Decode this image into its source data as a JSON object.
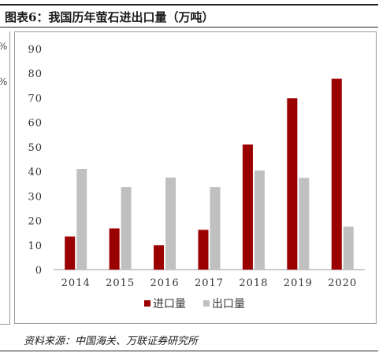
{
  "title": "图表6：我国历年萤石进出口量（万吨）",
  "source": "资料来源：中国海关、万联证券研究所",
  "left_fragment_marks": [
    "%",
    "%"
  ],
  "chart_data": {
    "type": "bar",
    "title": "",
    "xlabel": "",
    "ylabel": "",
    "categories": [
      "2014",
      "2015",
      "2016",
      "2017",
      "2018",
      "2019",
      "2020"
    ],
    "ylim": [
      0,
      90
    ],
    "yticks": [
      0,
      10,
      20,
      30,
      40,
      50,
      60,
      70,
      80,
      90
    ],
    "grid": false,
    "legend_position": "bottom-center",
    "series": [
      {
        "name": "进口量",
        "color": "#9b0000",
        "values": [
          13.5,
          16.8,
          9.9,
          16.2,
          51.0,
          69.8,
          77.8
        ]
      },
      {
        "name": "出口量",
        "color": "#c0c0c0",
        "values": [
          41.0,
          33.6,
          37.5,
          33.6,
          40.4,
          37.4,
          17.5
        ]
      }
    ]
  }
}
